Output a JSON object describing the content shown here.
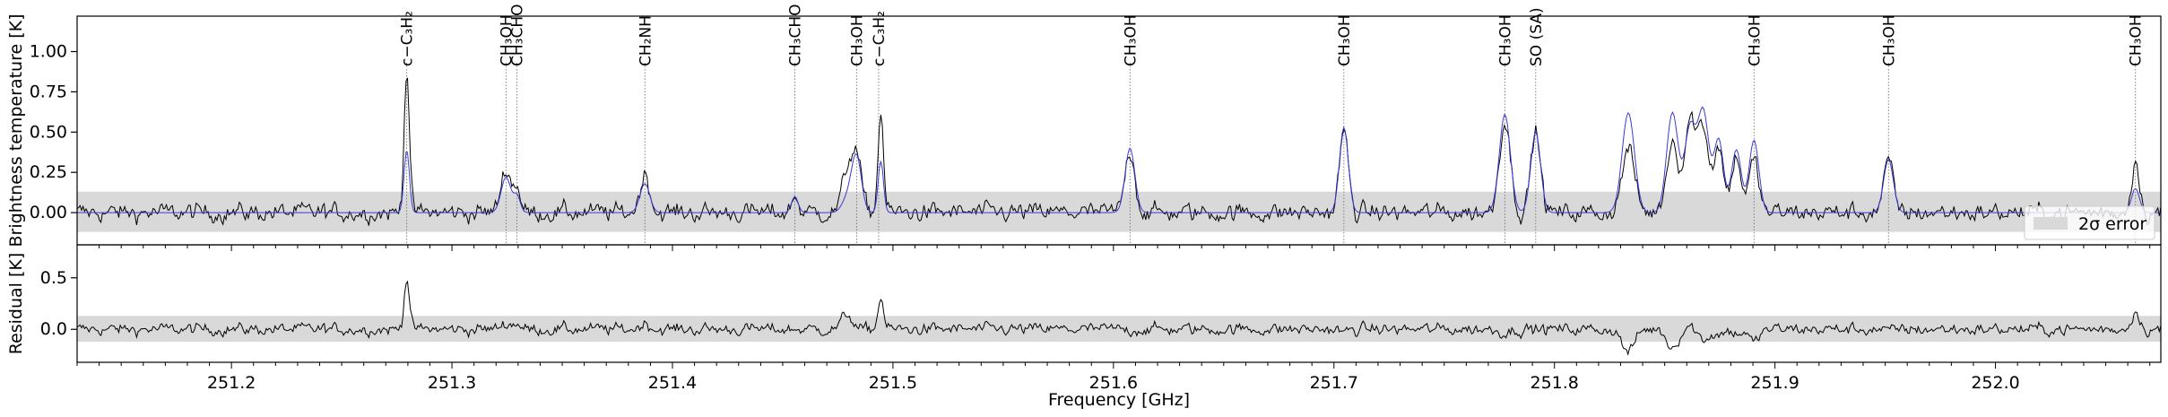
{
  "chart_data": [
    {
      "type": "line",
      "panel": "spectrum",
      "xlabel": "",
      "ylabel": "Brightness temperature [K]",
      "xlim": [
        251.13,
        252.075
      ],
      "ylim": [
        -0.2,
        1.22
      ],
      "yticks": [
        0.0,
        0.25,
        0.5,
        0.75,
        1.0
      ],
      "ytick_labels": [
        "0.00",
        "0.25",
        "0.50",
        "0.75",
        "1.00"
      ],
      "error_band": [
        -0.12,
        0.13
      ],
      "legend": {
        "label": "2σ error",
        "position": "lower-right"
      },
      "series": [
        {
          "role": "observed",
          "color": "#000000",
          "noise": 0.05
        },
        {
          "role": "model",
          "color": "#3a3ad6"
        }
      ],
      "peaks": [
        {
          "x": 251.2795,
          "obs": 0.9,
          "model": 0.39,
          "w": 0.0012
        },
        {
          "x": 251.3245,
          "obs": 0.28,
          "model": 0.22,
          "w": 0.0022
        },
        {
          "x": 251.3295,
          "obs": 0.16,
          "model": 0.1,
          "w": 0.0015
        },
        {
          "x": 251.3875,
          "obs": 0.24,
          "model": 0.18,
          "w": 0.0022
        },
        {
          "x": 251.4555,
          "obs": 0.1,
          "model": 0.1,
          "w": 0.0015
        },
        {
          "x": 251.4795,
          "obs": 0.24,
          "model": 0.09,
          "w": 0.0025
        },
        {
          "x": 251.4835,
          "obs": 0.32,
          "model": 0.34,
          "w": 0.0022
        },
        {
          "x": 251.4945,
          "obs": 0.64,
          "model": 0.32,
          "w": 0.0012
        },
        {
          "x": 251.6075,
          "obs": 0.39,
          "model": 0.4,
          "w": 0.0022
        },
        {
          "x": 251.7045,
          "obs": 0.5,
          "model": 0.53,
          "w": 0.002
        },
        {
          "x": 251.7775,
          "obs": 0.58,
          "model": 0.61,
          "w": 0.0025
        },
        {
          "x": 251.7915,
          "obs": 0.5,
          "model": 0.5,
          "w": 0.0022
        },
        {
          "x": 251.8335,
          "obs": 0.4,
          "model": 0.62,
          "w": 0.0028
        },
        {
          "x": 251.8535,
          "obs": 0.45,
          "model": 0.62,
          "w": 0.0026
        },
        {
          "x": 251.8615,
          "obs": 0.56,
          "model": 0.52,
          "w": 0.0025
        },
        {
          "x": 251.8675,
          "obs": 0.52,
          "model": 0.62,
          "w": 0.0025
        },
        {
          "x": 251.8745,
          "obs": 0.4,
          "model": 0.45,
          "w": 0.0022
        },
        {
          "x": 251.8825,
          "obs": 0.35,
          "model": 0.39,
          "w": 0.0022
        },
        {
          "x": 251.8905,
          "obs": 0.32,
          "model": 0.45,
          "w": 0.0022
        },
        {
          "x": 251.9515,
          "obs": 0.31,
          "model": 0.33,
          "w": 0.0022
        },
        {
          "x": 252.0635,
          "obs": 0.33,
          "model": 0.15,
          "w": 0.0018
        }
      ],
      "line_markers": [
        {
          "x": 251.2795,
          "label": "c−C₃H₂"
        },
        {
          "x": 251.3245,
          "label": "CH₃OH"
        },
        {
          "x": 251.3295,
          "label": "CH₃CHO"
        },
        {
          "x": 251.3875,
          "label": "CH₂NH"
        },
        {
          "x": 251.4555,
          "label": "CH₃CHO"
        },
        {
          "x": 251.4835,
          "label": "CH₃OH"
        },
        {
          "x": 251.4935,
          "label": "c−C₃H₂"
        },
        {
          "x": 251.6075,
          "label": "CH₃OH"
        },
        {
          "x": 251.7045,
          "label": "CH₃OH"
        },
        {
          "x": 251.7775,
          "label": "CH₃OH"
        },
        {
          "x": 251.7915,
          "label": "SO (SA)"
        },
        {
          "x": 251.8905,
          "label": "CH₃OH"
        },
        {
          "x": 251.9515,
          "label": "CH₃OH"
        },
        {
          "x": 252.0635,
          "label": "CH₃OH"
        }
      ]
    },
    {
      "type": "line",
      "panel": "residual",
      "xlabel": "Frequency [GHz]",
      "ylabel": "Residual [K]",
      "xlim": [
        251.13,
        252.075
      ],
      "ylim": [
        -0.32,
        0.82
      ],
      "yticks": [
        0.0,
        0.5
      ],
      "ytick_labels": [
        "0.0",
        "0.5"
      ],
      "xticks": [
        251.2,
        251.3,
        251.4,
        251.5,
        251.6,
        251.7,
        251.8,
        251.9,
        252.0
      ],
      "xtick_labels": [
        "251.2",
        "251.3",
        "251.4",
        "251.5",
        "251.6",
        "251.7",
        "251.8",
        "251.9",
        "252.0"
      ],
      "error_band": [
        -0.12,
        0.13
      ],
      "series": [
        {
          "role": "residual",
          "color": "#000000",
          "noise": 0.05
        }
      ]
    }
  ]
}
